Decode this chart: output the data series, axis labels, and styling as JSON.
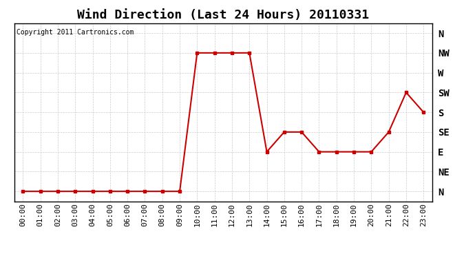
{
  "title": "Wind Direction (Last 24 Hours) 20110331",
  "copyright_text": "Copyright 2011 Cartronics.com",
  "x_labels": [
    "00:00",
    "01:00",
    "02:00",
    "03:00",
    "04:00",
    "05:00",
    "06:00",
    "07:00",
    "08:00",
    "09:00",
    "10:00",
    "11:00",
    "12:00",
    "13:00",
    "14:00",
    "15:00",
    "16:00",
    "17:00",
    "18:00",
    "19:00",
    "20:00",
    "21:00",
    "22:00",
    "23:00"
  ],
  "y_labels": [
    "N",
    "NE",
    "E",
    "SE",
    "S",
    "SW",
    "W",
    "NW",
    "N"
  ],
  "y_values": [
    0,
    1,
    2,
    3,
    4,
    5,
    6,
    7,
    8
  ],
  "data_x": [
    0,
    1,
    2,
    3,
    4,
    5,
    6,
    7,
    8,
    9,
    10,
    11,
    12,
    13,
    14,
    15,
    16,
    17,
    18,
    19,
    20,
    21,
    22,
    23
  ],
  "data_y": [
    0,
    0,
    0,
    0,
    0,
    0,
    0,
    0,
    0,
    0,
    7,
    7,
    7,
    7,
    2,
    3,
    3,
    2,
    2,
    2,
    2,
    3,
    5,
    4
  ],
  "line_color": "#cc0000",
  "marker": "s",
  "marker_size": 3,
  "bg_color": "#ffffff",
  "grid_color": "#cccccc",
  "title_fontsize": 13,
  "axis_label_fontsize": 8,
  "copyright_fontsize": 7
}
